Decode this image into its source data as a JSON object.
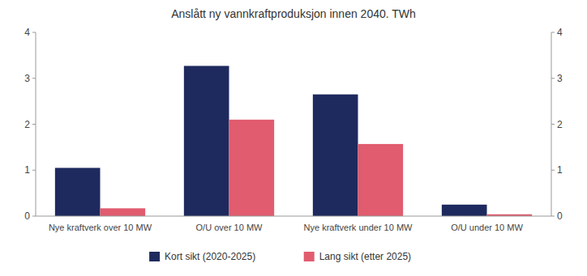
{
  "chart_data": {
    "type": "bar",
    "title": "Anslått ny vannkraftproduksjon innen 2040.  TWh",
    "categories": [
      "Nye kraftverk over 10 MW",
      "O/U over 10 MW",
      "Nye kraftverk under 10 MW",
      "O/U under 10 MW"
    ],
    "series": [
      {
        "name": "Kort sikt (2020-2025)",
        "color": "#1e2a5e",
        "values": [
          1.05,
          3.27,
          2.65,
          0.25
        ]
      },
      {
        "name": "Lang sikt (etter 2025)",
        "color": "#e05c6e",
        "values": [
          0.17,
          2.1,
          1.57,
          0.04
        ]
      }
    ],
    "ylim": [
      0,
      4
    ],
    "yticks": [
      0,
      1,
      2,
      3,
      4
    ],
    "y2lim": [
      0,
      4
    ],
    "y2ticks": [
      0,
      1,
      2,
      3,
      4
    ],
    "grid": false,
    "legend": "bottom"
  }
}
